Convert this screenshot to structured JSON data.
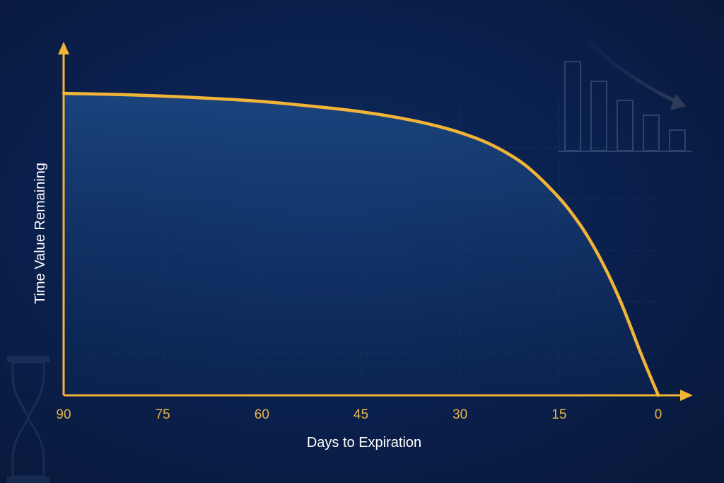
{
  "colors": {
    "background": "#0a1f4b",
    "accent": "#f2b437",
    "tick_text": "#e8b54a",
    "grid": "#4a6a9e",
    "label_text": "#ffffff"
  },
  "icons": {
    "decorative_top_right": "declining-bars-icon",
    "decorative_bottom_left": "hourglass-icon"
  },
  "chart_data": {
    "type": "area",
    "title": "",
    "xlabel": "Days to Expiration",
    "ylabel": "Time Value Remaining",
    "x_reversed": true,
    "xlim": [
      90,
      0
    ],
    "ylim": [
      0,
      100
    ],
    "x_ticks": [
      90,
      75,
      60,
      45,
      30,
      15,
      0
    ],
    "x_tick_labels": [
      "90",
      "75",
      "60",
      "45",
      "30",
      "15",
      "0"
    ],
    "y_tick_labels": [],
    "grid": true,
    "legend": "none",
    "series": [
      {
        "x": [
          90,
          80,
          70,
          60,
          50,
          45,
          40,
          35,
          30,
          25,
          20,
          15,
          12,
          10,
          8,
          6,
          5,
          4,
          3,
          2,
          1,
          0
        ],
        "values": [
          100,
          99.5,
          98.6,
          97.3,
          95.2,
          93.9,
          92.2,
          90.0,
          87.0,
          82.7,
          76.0,
          65.4,
          57.0,
          50.1,
          42.0,
          32.6,
          27.3,
          21.7,
          15.9,
          10.5,
          5.2,
          0
        ]
      }
    ]
  }
}
